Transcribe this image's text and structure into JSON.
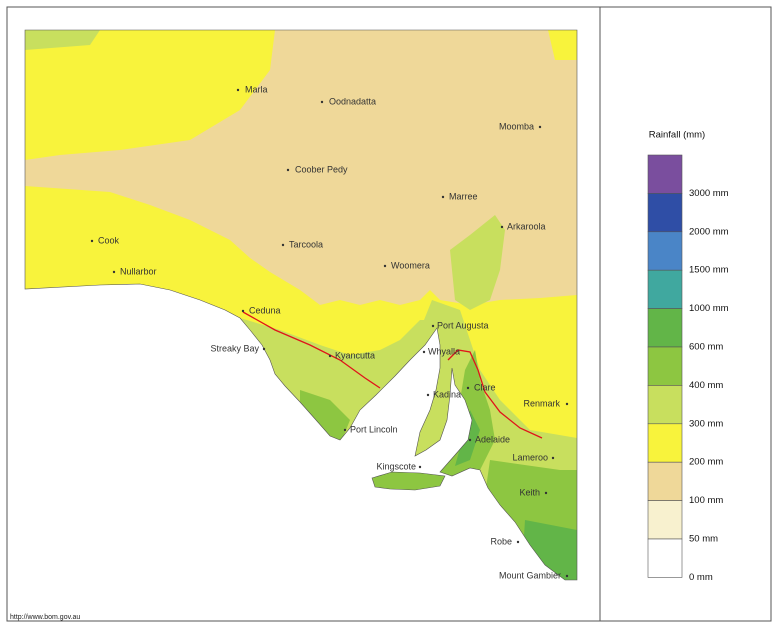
{
  "source": "http://www.bom.gov.au",
  "legend": {
    "title": "Rainfall (mm)",
    "labels": [
      "3000 mm",
      "2000 mm",
      "1500 mm",
      "1000 mm",
      "600 mm",
      "400 mm",
      "300 mm",
      "200 mm",
      "100 mm",
      "50 mm",
      "0 mm"
    ],
    "colors": [
      "#7a4e9e",
      "#2f4ea6",
      "#4a85c7",
      "#40a89f",
      "#62b548",
      "#8dc641",
      "#c8df5e",
      "#f8f33c",
      "#efd899",
      "#f8f1cf",
      "#ffffff"
    ]
  },
  "places": [
    {
      "label": "Marla"
    },
    {
      "label": "Oodnadatta"
    },
    {
      "label": "Moomba"
    },
    {
      "label": "Coober Pedy"
    },
    {
      "label": "Marree"
    },
    {
      "label": "Arkaroola"
    },
    {
      "label": "Cook"
    },
    {
      "label": "Tarcoola"
    },
    {
      "label": "Woomera"
    },
    {
      "label": "Nullarbor"
    },
    {
      "label": "Ceduna"
    },
    {
      "label": "Port Augusta"
    },
    {
      "label": "Streaky Bay"
    },
    {
      "label": "Whyalla"
    },
    {
      "label": "Kyancutta"
    },
    {
      "label": "Kadina"
    },
    {
      "label": "Clare"
    },
    {
      "label": "Renmark"
    },
    {
      "label": "Port Lincoln"
    },
    {
      "label": "Adelaide"
    },
    {
      "label": "Kingscote"
    },
    {
      "label": "Lameroo"
    },
    {
      "label": "Keith"
    },
    {
      "label": "Robe"
    },
    {
      "label": "Mount Gambier"
    }
  ]
}
